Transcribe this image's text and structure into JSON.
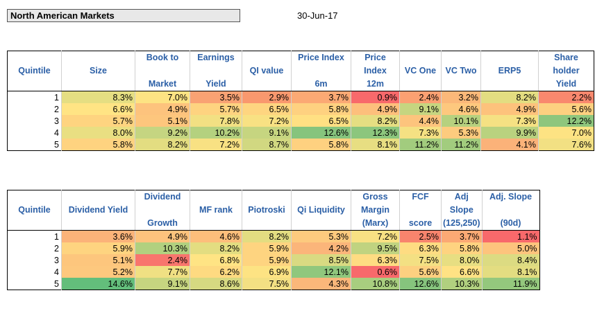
{
  "header": {
    "title": "North American Markets",
    "date": "30-Jun-17"
  },
  "table1": {
    "row_label": "Quintile",
    "columns": [
      {
        "l1": "",
        "l2": "Size",
        "l3": ""
      },
      {
        "l1": "Book to",
        "l2": "",
        "l3": "Market"
      },
      {
        "l1": "Earnings",
        "l2": "",
        "l3": "Yield"
      },
      {
        "l1": "",
        "l2": "QI value",
        "l3": ""
      },
      {
        "l1": "Price Index",
        "l2": "",
        "l3": "6m"
      },
      {
        "l1": "Price",
        "l2": "Index",
        "l3": "12m"
      },
      {
        "l1": "",
        "l2": "VC One",
        "l3": ""
      },
      {
        "l1": "",
        "l2": "VC Two",
        "l3": ""
      },
      {
        "l1": "",
        "l2": "ERP5",
        "l3": ""
      },
      {
        "l1": "Share holder",
        "l2": "",
        "l3": "Yield"
      }
    ],
    "rows": [
      {
        "q": "1",
        "cells": [
          [
            "8.3%",
            "#e5de82"
          ],
          [
            "7.0%",
            "#fde383"
          ],
          [
            "3.5%",
            "#f9a273"
          ],
          [
            "2.9%",
            "#f9986e"
          ],
          [
            "3.7%",
            "#fba974"
          ],
          [
            "0.9%",
            "#f8696b"
          ],
          [
            "2.4%",
            "#fba072"
          ],
          [
            "3.2%",
            "#fbb879"
          ],
          [
            "8.2%",
            "#e3dd81"
          ],
          [
            "2.2%",
            "#f9886e"
          ]
        ]
      },
      {
        "q": "2",
        "cells": [
          [
            "6.6%",
            "#ffe484"
          ],
          [
            "4.9%",
            "#fdc37d"
          ],
          [
            "5.7%",
            "#fed380"
          ],
          [
            "6.5%",
            "#fed580"
          ],
          [
            "5.8%",
            "#fed180"
          ],
          [
            "4.9%",
            "#fdbf7c"
          ],
          [
            "9.1%",
            "#c6d580"
          ],
          [
            "4.6%",
            "#fdc87e"
          ],
          [
            "4.9%",
            "#fdc27c"
          ],
          [
            "5.6%",
            "#fdd080"
          ]
        ]
      },
      {
        "q": "3",
        "cells": [
          [
            "5.7%",
            "#fed480"
          ],
          [
            "5.1%",
            "#fdc67d"
          ],
          [
            "7.8%",
            "#f2e083"
          ],
          [
            "7.2%",
            "#f8e183"
          ],
          [
            "6.5%",
            "#ffe083"
          ],
          [
            "8.2%",
            "#e5de82"
          ],
          [
            "4.4%",
            "#fdc47d"
          ],
          [
            "10.1%",
            "#b6d17f"
          ],
          [
            "7.3%",
            "#f5e183"
          ],
          [
            "12.2%",
            "#8ec67d"
          ]
        ]
      },
      {
        "q": "4",
        "cells": [
          [
            "8.0%",
            "#e9df82"
          ],
          [
            "9.2%",
            "#c5d581"
          ],
          [
            "10.2%",
            "#b4d17f"
          ],
          [
            "9.1%",
            "#c6d580"
          ],
          [
            "12.6%",
            "#86c47d"
          ],
          [
            "12.3%",
            "#8cc67d"
          ],
          [
            "7.3%",
            "#f5e183"
          ],
          [
            "5.3%",
            "#fdcb7e"
          ],
          [
            "9.9%",
            "#b9d27f"
          ],
          [
            "7.0%",
            "#fde383"
          ]
        ]
      },
      {
        "q": "5",
        "cells": [
          [
            "5.8%",
            "#fed380"
          ],
          [
            "8.2%",
            "#e3dd81"
          ],
          [
            "7.2%",
            "#f8e183"
          ],
          [
            "8.7%",
            "#d1d881"
          ],
          [
            "5.8%",
            "#fed180"
          ],
          [
            "8.1%",
            "#e7de82"
          ],
          [
            "11.2%",
            "#a2cc7e"
          ],
          [
            "11.2%",
            "#a2cc7e"
          ],
          [
            "4.1%",
            "#fbb279"
          ],
          [
            "7.6%",
            "#f2e083"
          ]
        ]
      }
    ]
  },
  "table2": {
    "row_label": "Quintile",
    "columns": [
      {
        "l1": "",
        "l2": "Dividend Yield",
        "l3": ""
      },
      {
        "l1": "Dividend",
        "l2": "",
        "l3": "Growth"
      },
      {
        "l1": "",
        "l2": "MF rank",
        "l3": ""
      },
      {
        "l1": "",
        "l2": "Piotroski",
        "l3": ""
      },
      {
        "l1": "",
        "l2": "Qi Liquidity",
        "l3": ""
      },
      {
        "l1": "Gross",
        "l2": "Margin",
        "l3": "(Marx)"
      },
      {
        "l1": "FCF",
        "l2": "",
        "l3": "score"
      },
      {
        "l1": "Adj",
        "l2": "Slope",
        "l3": "(125,250)"
      },
      {
        "l1": "Adj. Slope",
        "l2": "",
        "l3": "(90d)"
      }
    ],
    "rows": [
      {
        "q": "1",
        "cells": [
          [
            "3.6%",
            "#fbb379"
          ],
          [
            "4.9%",
            "#fdc37d"
          ],
          [
            "4.6%",
            "#fdbe7b"
          ],
          [
            "8.2%",
            "#e3dd81"
          ],
          [
            "5.3%",
            "#fdca7e"
          ],
          [
            "7.2%",
            "#f8e183"
          ],
          [
            "2.5%",
            "#f8846d"
          ],
          [
            "3.7%",
            "#fba974"
          ],
          [
            "1.1%",
            "#f8696b"
          ]
        ]
      },
      {
        "q": "2",
        "cells": [
          [
            "5.9%",
            "#fed480"
          ],
          [
            "10.3%",
            "#b1d07f"
          ],
          [
            "8.2%",
            "#e3dd81"
          ],
          [
            "5.9%",
            "#fed480"
          ],
          [
            "4.2%",
            "#fbb57a"
          ],
          [
            "9.5%",
            "#c0d380"
          ],
          [
            "6.3%",
            "#fedc82"
          ],
          [
            "5.8%",
            "#fed380"
          ],
          [
            "5.0%",
            "#fdc47d"
          ]
        ]
      },
      {
        "q": "3",
        "cells": [
          [
            "5.1%",
            "#fdc67d"
          ],
          [
            "2.4%",
            "#f8756d"
          ],
          [
            "6.8%",
            "#ffe484"
          ],
          [
            "5.9%",
            "#fed480"
          ],
          [
            "8.5%",
            "#d9da82"
          ],
          [
            "6.3%",
            "#fedc82"
          ],
          [
            "7.5%",
            "#f3e083"
          ],
          [
            "8.0%",
            "#e7de82"
          ],
          [
            "8.4%",
            "#dcdb82"
          ]
        ]
      },
      {
        "q": "4",
        "cells": [
          [
            "5.2%",
            "#fdc87e"
          ],
          [
            "7.7%",
            "#f0e083"
          ],
          [
            "6.2%",
            "#feda81"
          ],
          [
            "6.9%",
            "#fde383"
          ],
          [
            "12.1%",
            "#90c77d"
          ],
          [
            "0.6%",
            "#f8696b"
          ],
          [
            "5.6%",
            "#fdd080"
          ],
          [
            "6.6%",
            "#ffe284"
          ],
          [
            "8.1%",
            "#e3dd81"
          ]
        ]
      },
      {
        "q": "5",
        "cells": [
          [
            "14.6%",
            "#63be7b"
          ],
          [
            "9.1%",
            "#c6d580"
          ],
          [
            "8.6%",
            "#d6d981"
          ],
          [
            "7.5%",
            "#f3e083"
          ],
          [
            "4.3%",
            "#fbb77a"
          ],
          [
            "10.8%",
            "#a8ce7f"
          ],
          [
            "12.6%",
            "#86c47d"
          ],
          [
            "10.3%",
            "#b1d07f"
          ],
          [
            "11.9%",
            "#94c87d"
          ]
        ]
      }
    ]
  }
}
